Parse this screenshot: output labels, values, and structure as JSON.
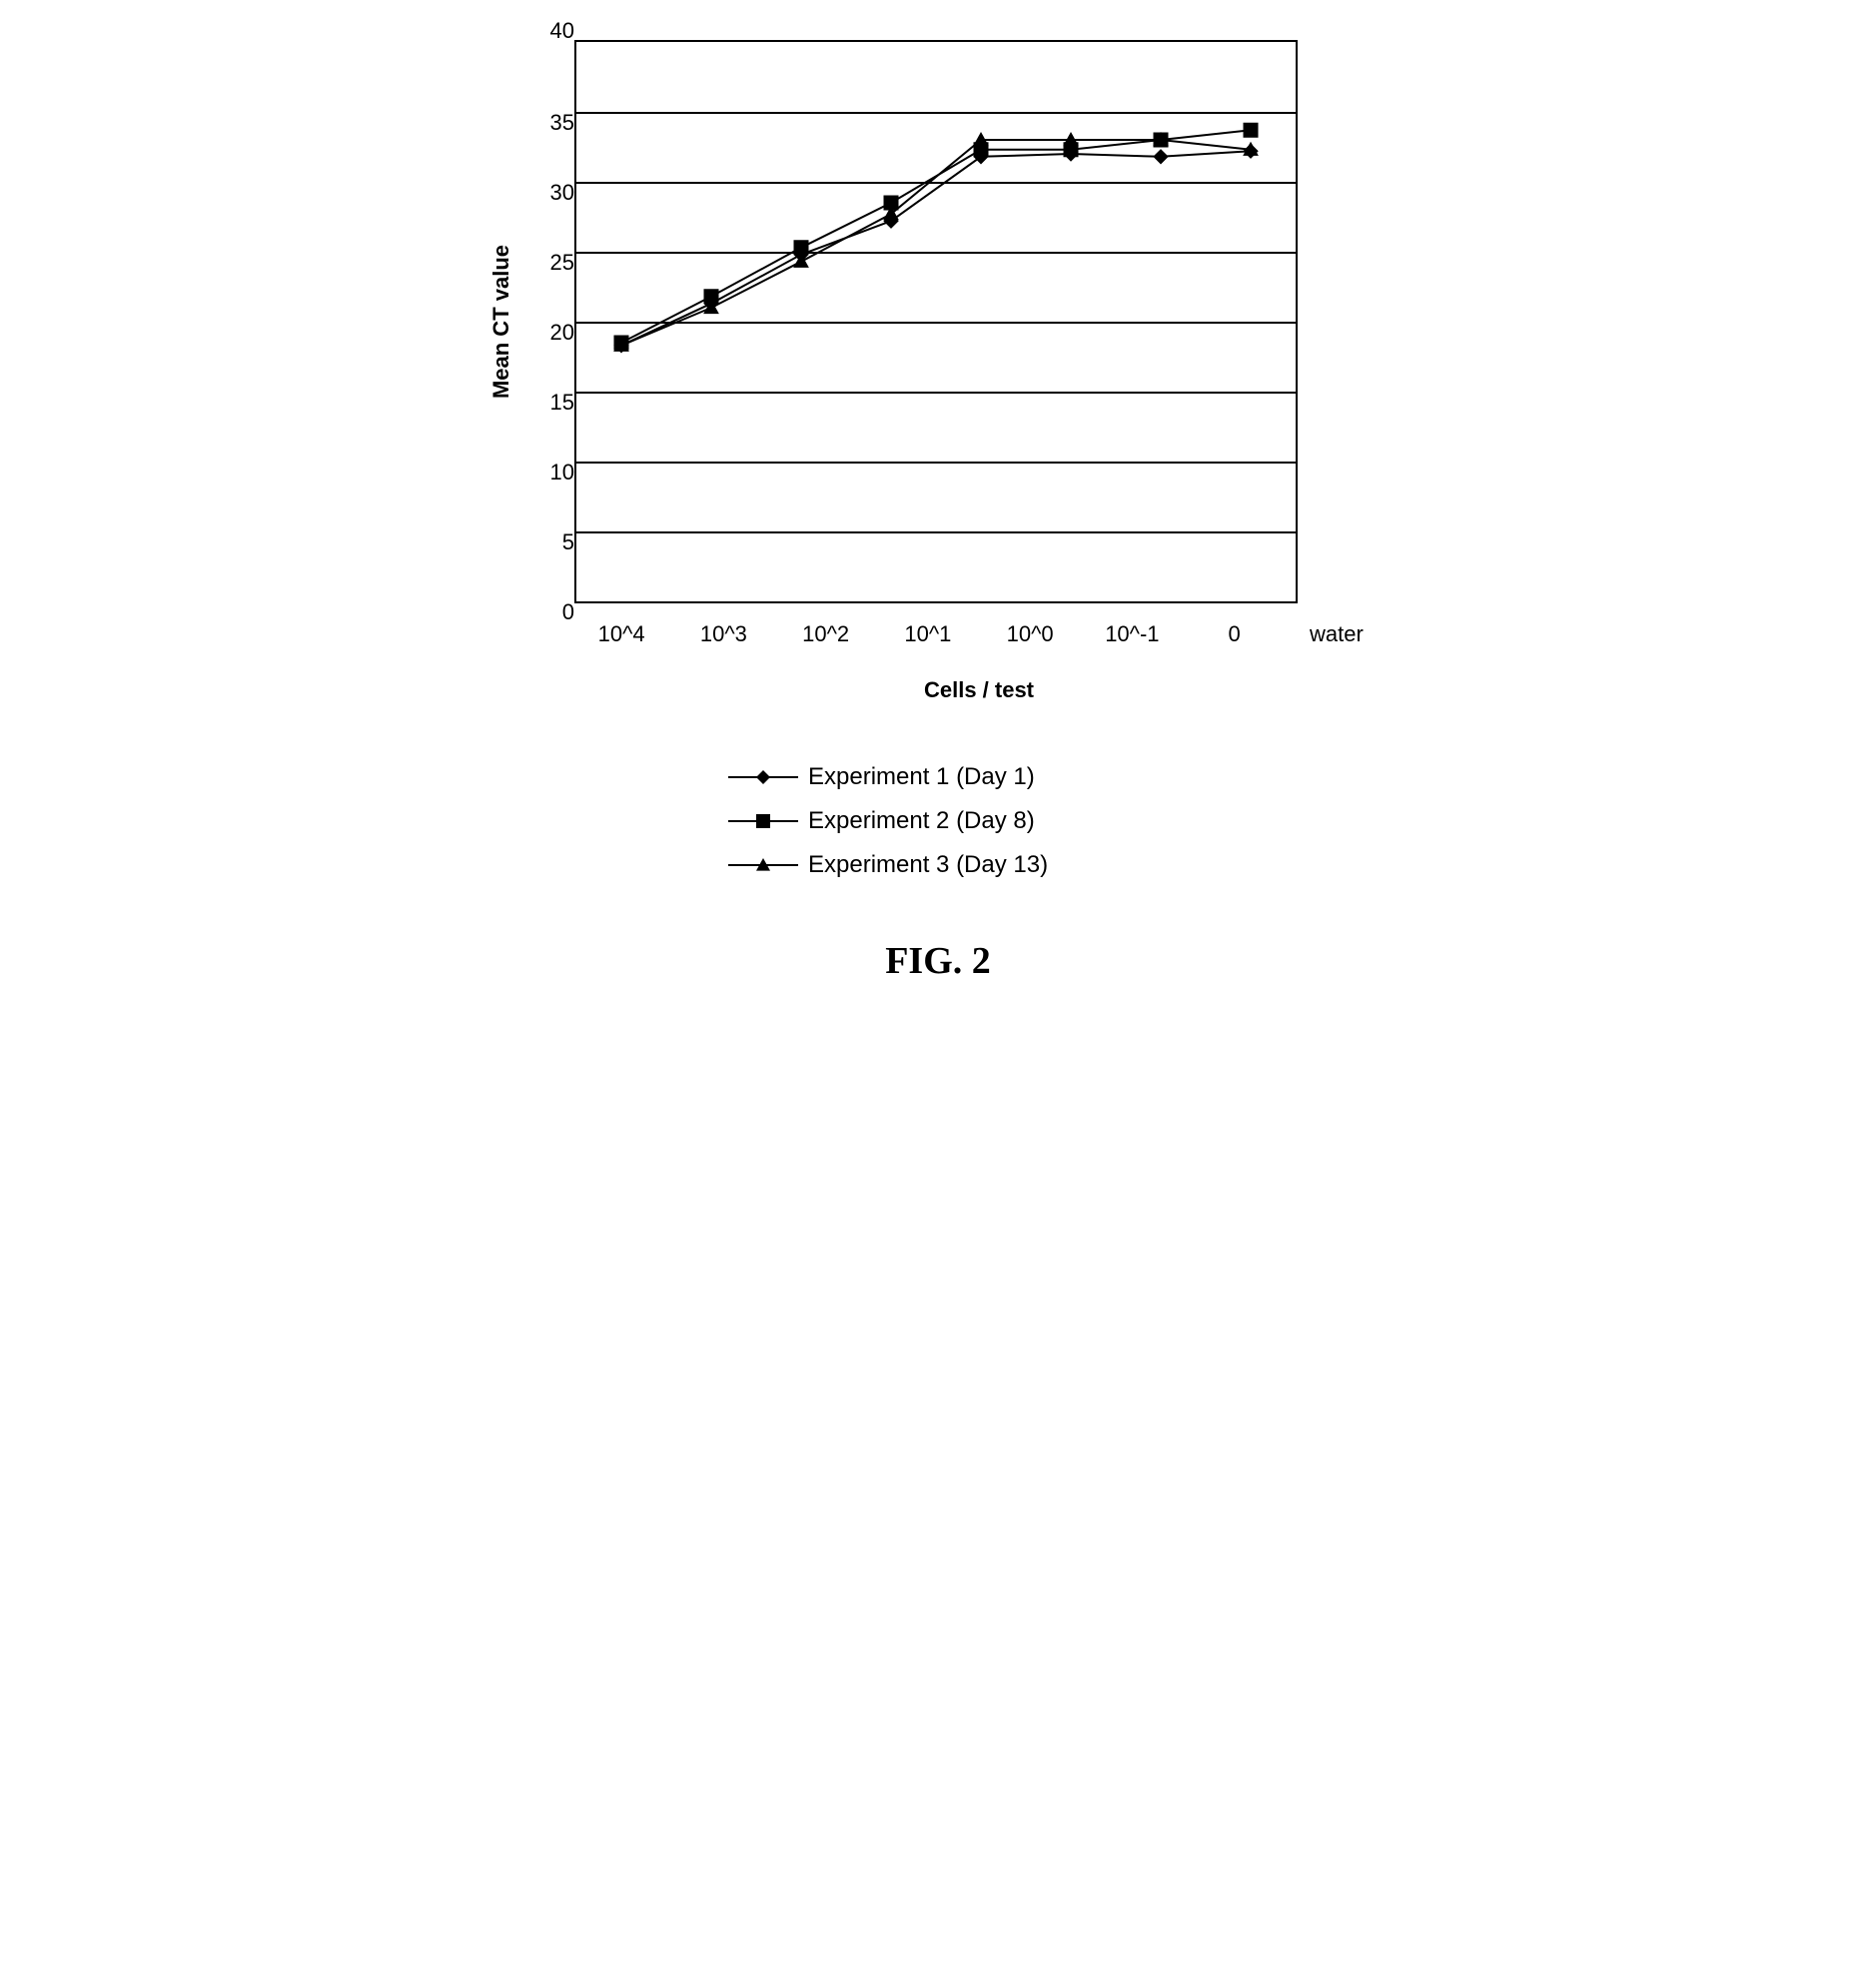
{
  "chart": {
    "type": "line",
    "ylabel": "Mean CT value",
    "xlabel": "Cells / test",
    "label_fontsize": 22,
    "label_fontweight": "bold",
    "ylim": [
      0,
      40
    ],
    "ytick_step": 5,
    "yticks": [
      40,
      35,
      30,
      25,
      20,
      15,
      10,
      5,
      0
    ],
    "xcategories": [
      "10^4",
      "10^3",
      "10^2",
      "10^1",
      "10^0",
      "10^-1",
      "0",
      "water"
    ],
    "background_color": "#ffffff",
    "grid_color": "#000000",
    "axis_color": "#000000",
    "line_width": 2,
    "marker_size": 7,
    "series": [
      {
        "name": "Experiment 1 (Day 1)",
        "marker": "diamond",
        "color": "#000000",
        "values": [
          18.3,
          21.3,
          24.8,
          27.2,
          31.8,
          32.0,
          31.8,
          32.2
        ]
      },
      {
        "name": "Experiment 2 (Day 8)",
        "marker": "square",
        "color": "#000000",
        "values": [
          18.5,
          21.8,
          25.3,
          28.5,
          32.3,
          32.3,
          33.0,
          33.7
        ]
      },
      {
        "name": "Experiment 3 (Day 13)",
        "marker": "triangle",
        "color": "#000000",
        "values": [
          18.3,
          21.0,
          24.3,
          27.7,
          33.0,
          33.0,
          33.0,
          32.3
        ]
      }
    ]
  },
  "caption": "FIG. 2"
}
